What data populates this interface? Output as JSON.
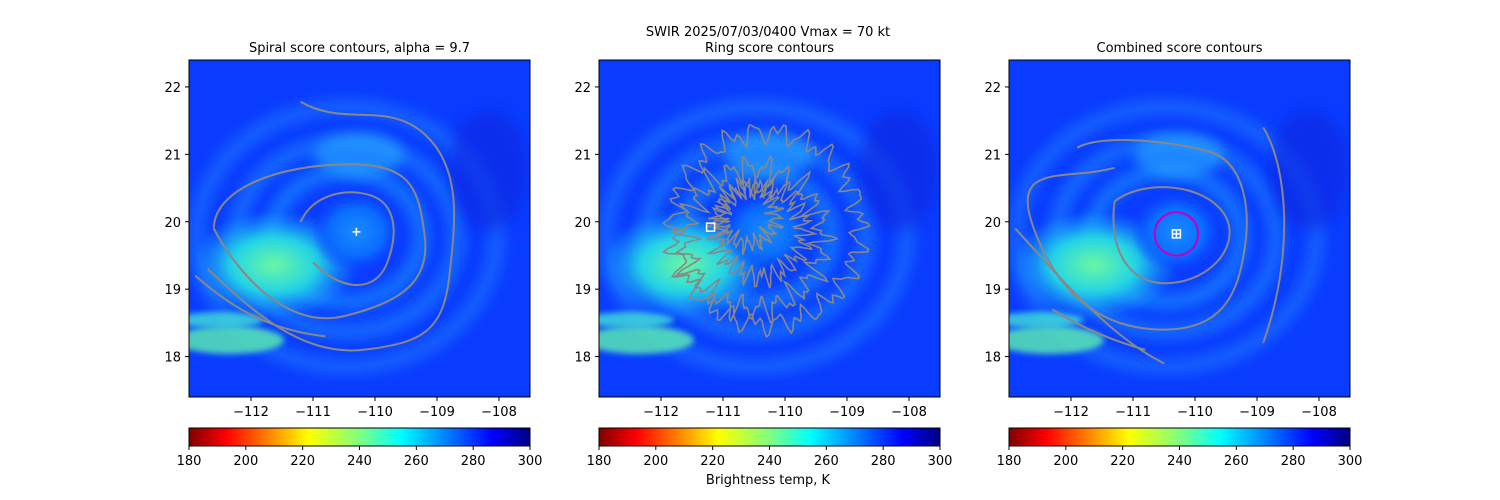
{
  "figure": {
    "suptitle_line1": "SWIR  2025/07/03/0400    Vmax = 70 kt",
    "colorbar_label": "Brightness temp, K"
  },
  "colors": {
    "contour": "#888888",
    "combined_circle": "#c000c0",
    "marker": "#ffffff"
  },
  "colorbar": {
    "colormap": "jet-reversed",
    "range": [
      180,
      300
    ],
    "ticks": [
      "180",
      "200",
      "220",
      "240",
      "260",
      "280",
      "300"
    ]
  },
  "chart_data": [
    {
      "type": "heatmap",
      "title": "Spiral score contours, alpha =  9.7",
      "xlim": [
        -113.0,
        -107.5
      ],
      "ylim": [
        17.4,
        22.4
      ],
      "xticks": [
        "−112",
        "−111",
        "−110",
        "−109",
        "−108"
      ],
      "yticks": [
        "18",
        "19",
        "20",
        "21",
        "22"
      ],
      "center_marker": {
        "shape": "plus",
        "lon": -110.3,
        "lat": 19.85
      },
      "contour_style": "smooth-spiral"
    },
    {
      "type": "heatmap",
      "title": "Ring score contours",
      "xlim": [
        -113.0,
        -107.5
      ],
      "ylim": [
        17.4,
        22.4
      ],
      "xticks": [
        "−112",
        "−111",
        "−110",
        "−109",
        "−108"
      ],
      "yticks": [
        "18",
        "19",
        "20",
        "21",
        "22"
      ],
      "center_marker": {
        "shape": "square",
        "lon": -111.2,
        "lat": 19.92
      },
      "contour_style": "noisy-ring"
    },
    {
      "type": "heatmap",
      "title": "Combined score contours",
      "xlim": [
        -113.0,
        -107.5
      ],
      "ylim": [
        17.4,
        22.4
      ],
      "xticks": [
        "−112",
        "−111",
        "−110",
        "−109",
        "−108"
      ],
      "yticks": [
        "18",
        "19",
        "20",
        "21",
        "22"
      ],
      "center_marker": {
        "shape": "square-plus",
        "lon": -110.3,
        "lat": 19.82
      },
      "circle": {
        "lon": -110.3,
        "lat": 19.82,
        "radius_deg": 0.35
      },
      "contour_style": "smooth-nested"
    }
  ]
}
